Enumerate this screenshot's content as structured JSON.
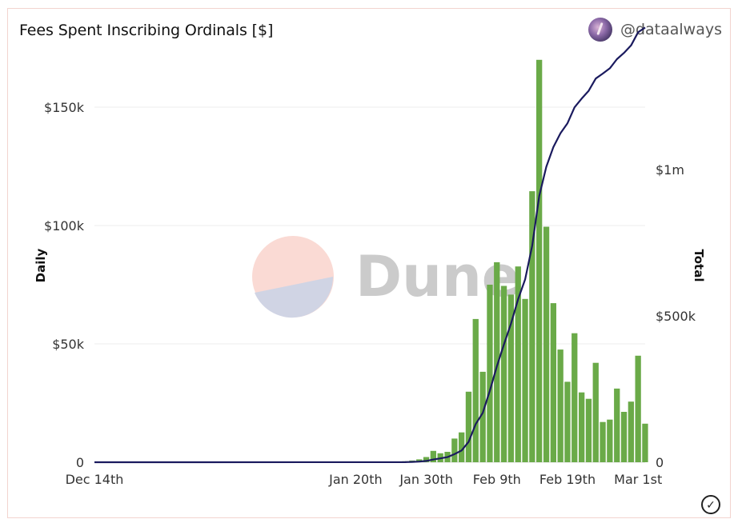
{
  "header": {
    "title": "Fees Spent Inscribing Ordinals [$]",
    "author": "@dataalways"
  },
  "watermark": {
    "text": "Dune"
  },
  "chart_data": {
    "type": "bar",
    "title": "Fees Spent Inscribing Ordinals [$]",
    "x_tick_labels": [
      "Dec 14th",
      "Jan 20th",
      "Jan 30th",
      "Feb 9th",
      "Feb 19th",
      "Mar 1st"
    ],
    "left_axis": {
      "label": "Daily",
      "ticks": [
        0,
        50000,
        100000,
        150000
      ],
      "tick_labels": [
        "0",
        "$50k",
        "$100k",
        "$150k"
      ],
      "ylim": [
        0,
        175000
      ]
    },
    "right_axis": {
      "label": "Total",
      "ticks": [
        0,
        500000,
        1000000
      ],
      "tick_labels": [
        "0",
        "$500k",
        "$1m"
      ],
      "ylim": [
        0,
        1415000
      ]
    },
    "grid": true,
    "bar_color": "#6aaa48",
    "line_color": "#1a1a5e",
    "series": [
      {
        "type": "bar",
        "axis": "left",
        "dates": [
          "Jan 27th",
          "Jan 28th",
          "Jan 29th",
          "Jan 30th",
          "Jan 31st",
          "Feb 1st",
          "Feb 2nd",
          "Feb 3rd",
          "Feb 4th",
          "Feb 5th",
          "Feb 6th",
          "Feb 7th",
          "Feb 8th",
          "Feb 9th",
          "Feb 10th",
          "Feb 11th",
          "Feb 12th",
          "Feb 13th",
          "Feb 14th",
          "Feb 15th",
          "Feb 16th",
          "Feb 17th",
          "Feb 18th",
          "Feb 19th",
          "Feb 20th",
          "Feb 21st",
          "Feb 22nd",
          "Feb 23rd",
          "Feb 24th",
          "Feb 25th",
          "Feb 26th",
          "Feb 27th",
          "Feb 28th",
          "Mar 1st",
          "Mar 2nd"
        ],
        "values": [
          400,
          700,
          1200,
          2200,
          4800,
          3800,
          4400,
          10000,
          12600,
          29800,
          60500,
          38200,
          75000,
          84500,
          74500,
          70800,
          82700,
          69000,
          114500,
          170000,
          99500,
          67200,
          47600,
          34000,
          54500,
          29500,
          26800,
          42000,
          17000,
          18000,
          31100,
          21300,
          25600,
          45000,
          16300
        ]
      },
      {
        "type": "line",
        "axis": "right",
        "dates": [
          "Dec 14th",
          "Jan 27th",
          "Jan 28th",
          "Jan 29th",
          "Jan 30th",
          "Jan 31st",
          "Feb 1st",
          "Feb 2nd",
          "Feb 3rd",
          "Feb 4th",
          "Feb 5th",
          "Feb 6th",
          "Feb 7th",
          "Feb 8th",
          "Feb 9th",
          "Feb 10th",
          "Feb 11th",
          "Feb 12th",
          "Feb 13th",
          "Feb 14th",
          "Feb 15th",
          "Feb 16th",
          "Feb 17th",
          "Feb 18th",
          "Feb 19th",
          "Feb 20th",
          "Feb 21st",
          "Feb 22nd",
          "Feb 23rd",
          "Feb 24th",
          "Feb 25th",
          "Feb 26th",
          "Feb 27th",
          "Feb 28th",
          "Mar 1st",
          "Mar 2nd"
        ],
        "values": [
          0,
          400,
          1100,
          2300,
          4500,
          9300,
          13100,
          17500,
          27500,
          40100,
          69900,
          130400,
          168600,
          243600,
          328100,
          402600,
          473400,
          556100,
          625100,
          739600,
          909600,
          1009100,
          1076300,
          1123900,
          1157900,
          1212400,
          1241900,
          1268700,
          1310700,
          1327700,
          1345700,
          1376800,
          1398100,
          1423700,
          1468700,
          1485000
        ]
      }
    ]
  }
}
